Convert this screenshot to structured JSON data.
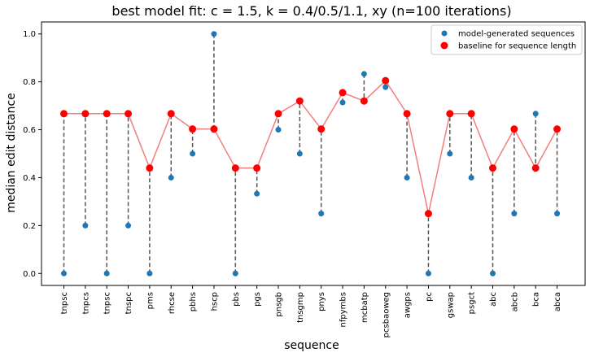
{
  "chart_data": {
    "type": "scatter",
    "title": "best model fit: c = 1.5, k = 0.4/0.5/1.1, xy (n=100 iterations)",
    "xlabel": "sequence",
    "ylabel": "median edit distance",
    "ylim": [
      -0.05,
      1.05
    ],
    "yticks": [
      "0.0",
      "0.2",
      "0.4",
      "0.6",
      "0.8",
      "1.0"
    ],
    "legend_position": "top-right",
    "categories": [
      "tnpsc",
      "tnpcs",
      "tnpsc",
      "tnspc",
      "pms",
      "rhcse",
      "pbhs",
      "hscp",
      "pbs",
      "pgs",
      "pnsgb",
      "tnsgmp",
      "pnys",
      "nfpymbs",
      "mcbatp",
      "pcsbaoweg",
      "awgps",
      "pc",
      "gswap",
      "psgct",
      "abc",
      "abcb",
      "bca",
      "abca"
    ],
    "series": [
      {
        "name": "model-generated sequences",
        "color": "#1f77b4",
        "values": [
          0.0,
          0.2,
          0.0,
          0.2,
          0.0,
          0.4,
          0.5,
          1.0,
          0.0,
          0.333,
          0.6,
          0.5,
          0.25,
          0.714,
          0.833,
          0.778,
          0.4,
          0.0,
          0.5,
          0.4,
          0.0,
          0.25,
          0.667,
          0.25
        ]
      },
      {
        "name": "baseline for sequence length",
        "color": "#ff0000",
        "line_color": "#f08080",
        "values": [
          0.667,
          0.667,
          0.667,
          0.667,
          0.44,
          0.667,
          0.603,
          0.603,
          0.44,
          0.44,
          0.667,
          0.72,
          0.603,
          0.755,
          0.72,
          0.805,
          0.667,
          0.25,
          0.667,
          0.667,
          0.44,
          0.603,
          0.44,
          0.603
        ]
      }
    ]
  }
}
